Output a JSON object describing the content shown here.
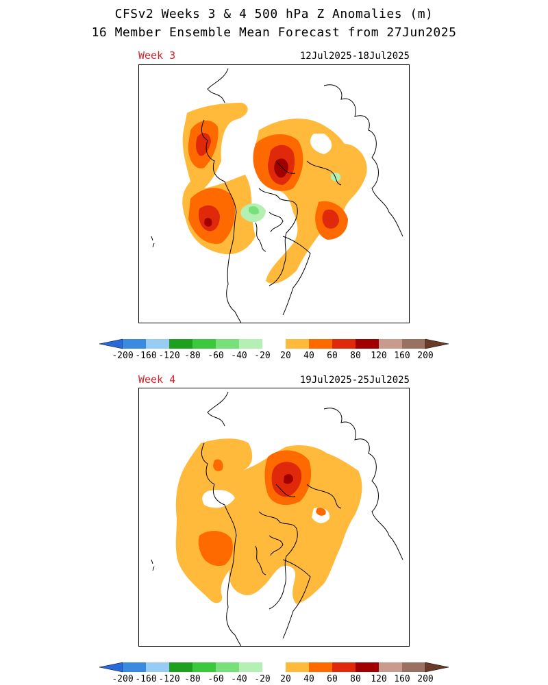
{
  "header": {
    "title": "CFSv2 Weeks 3 & 4 500 hPa Z Anomalies (m)",
    "subtitle": "16 Member Ensemble Mean Forecast from 27Jun2025"
  },
  "panels": [
    {
      "label": "Week 3",
      "dates": "12Jul2025-18Jul2025"
    },
    {
      "label": "Week 4",
      "dates": "19Jul2025-25Jul2025"
    }
  ],
  "colorbar": {
    "levels": [
      "-200",
      "-160",
      "-120",
      "-80",
      "-60",
      "-40",
      "-20",
      "20",
      "40",
      "60",
      "80",
      "120",
      "160",
      "200"
    ],
    "colors": [
      "#3a8ae0",
      "#97cdf5",
      "#1ea01e",
      "#3cc83c",
      "#78e078",
      "#b4f0b4",
      "#ffffff",
      "#ffba3c",
      "#ff6a00",
      "#e0280a",
      "#a00000",
      "#c89b8c",
      "#9a7060"
    ],
    "under_color": "#2a6ad8",
    "over_color": "#6a3a28"
  }
}
